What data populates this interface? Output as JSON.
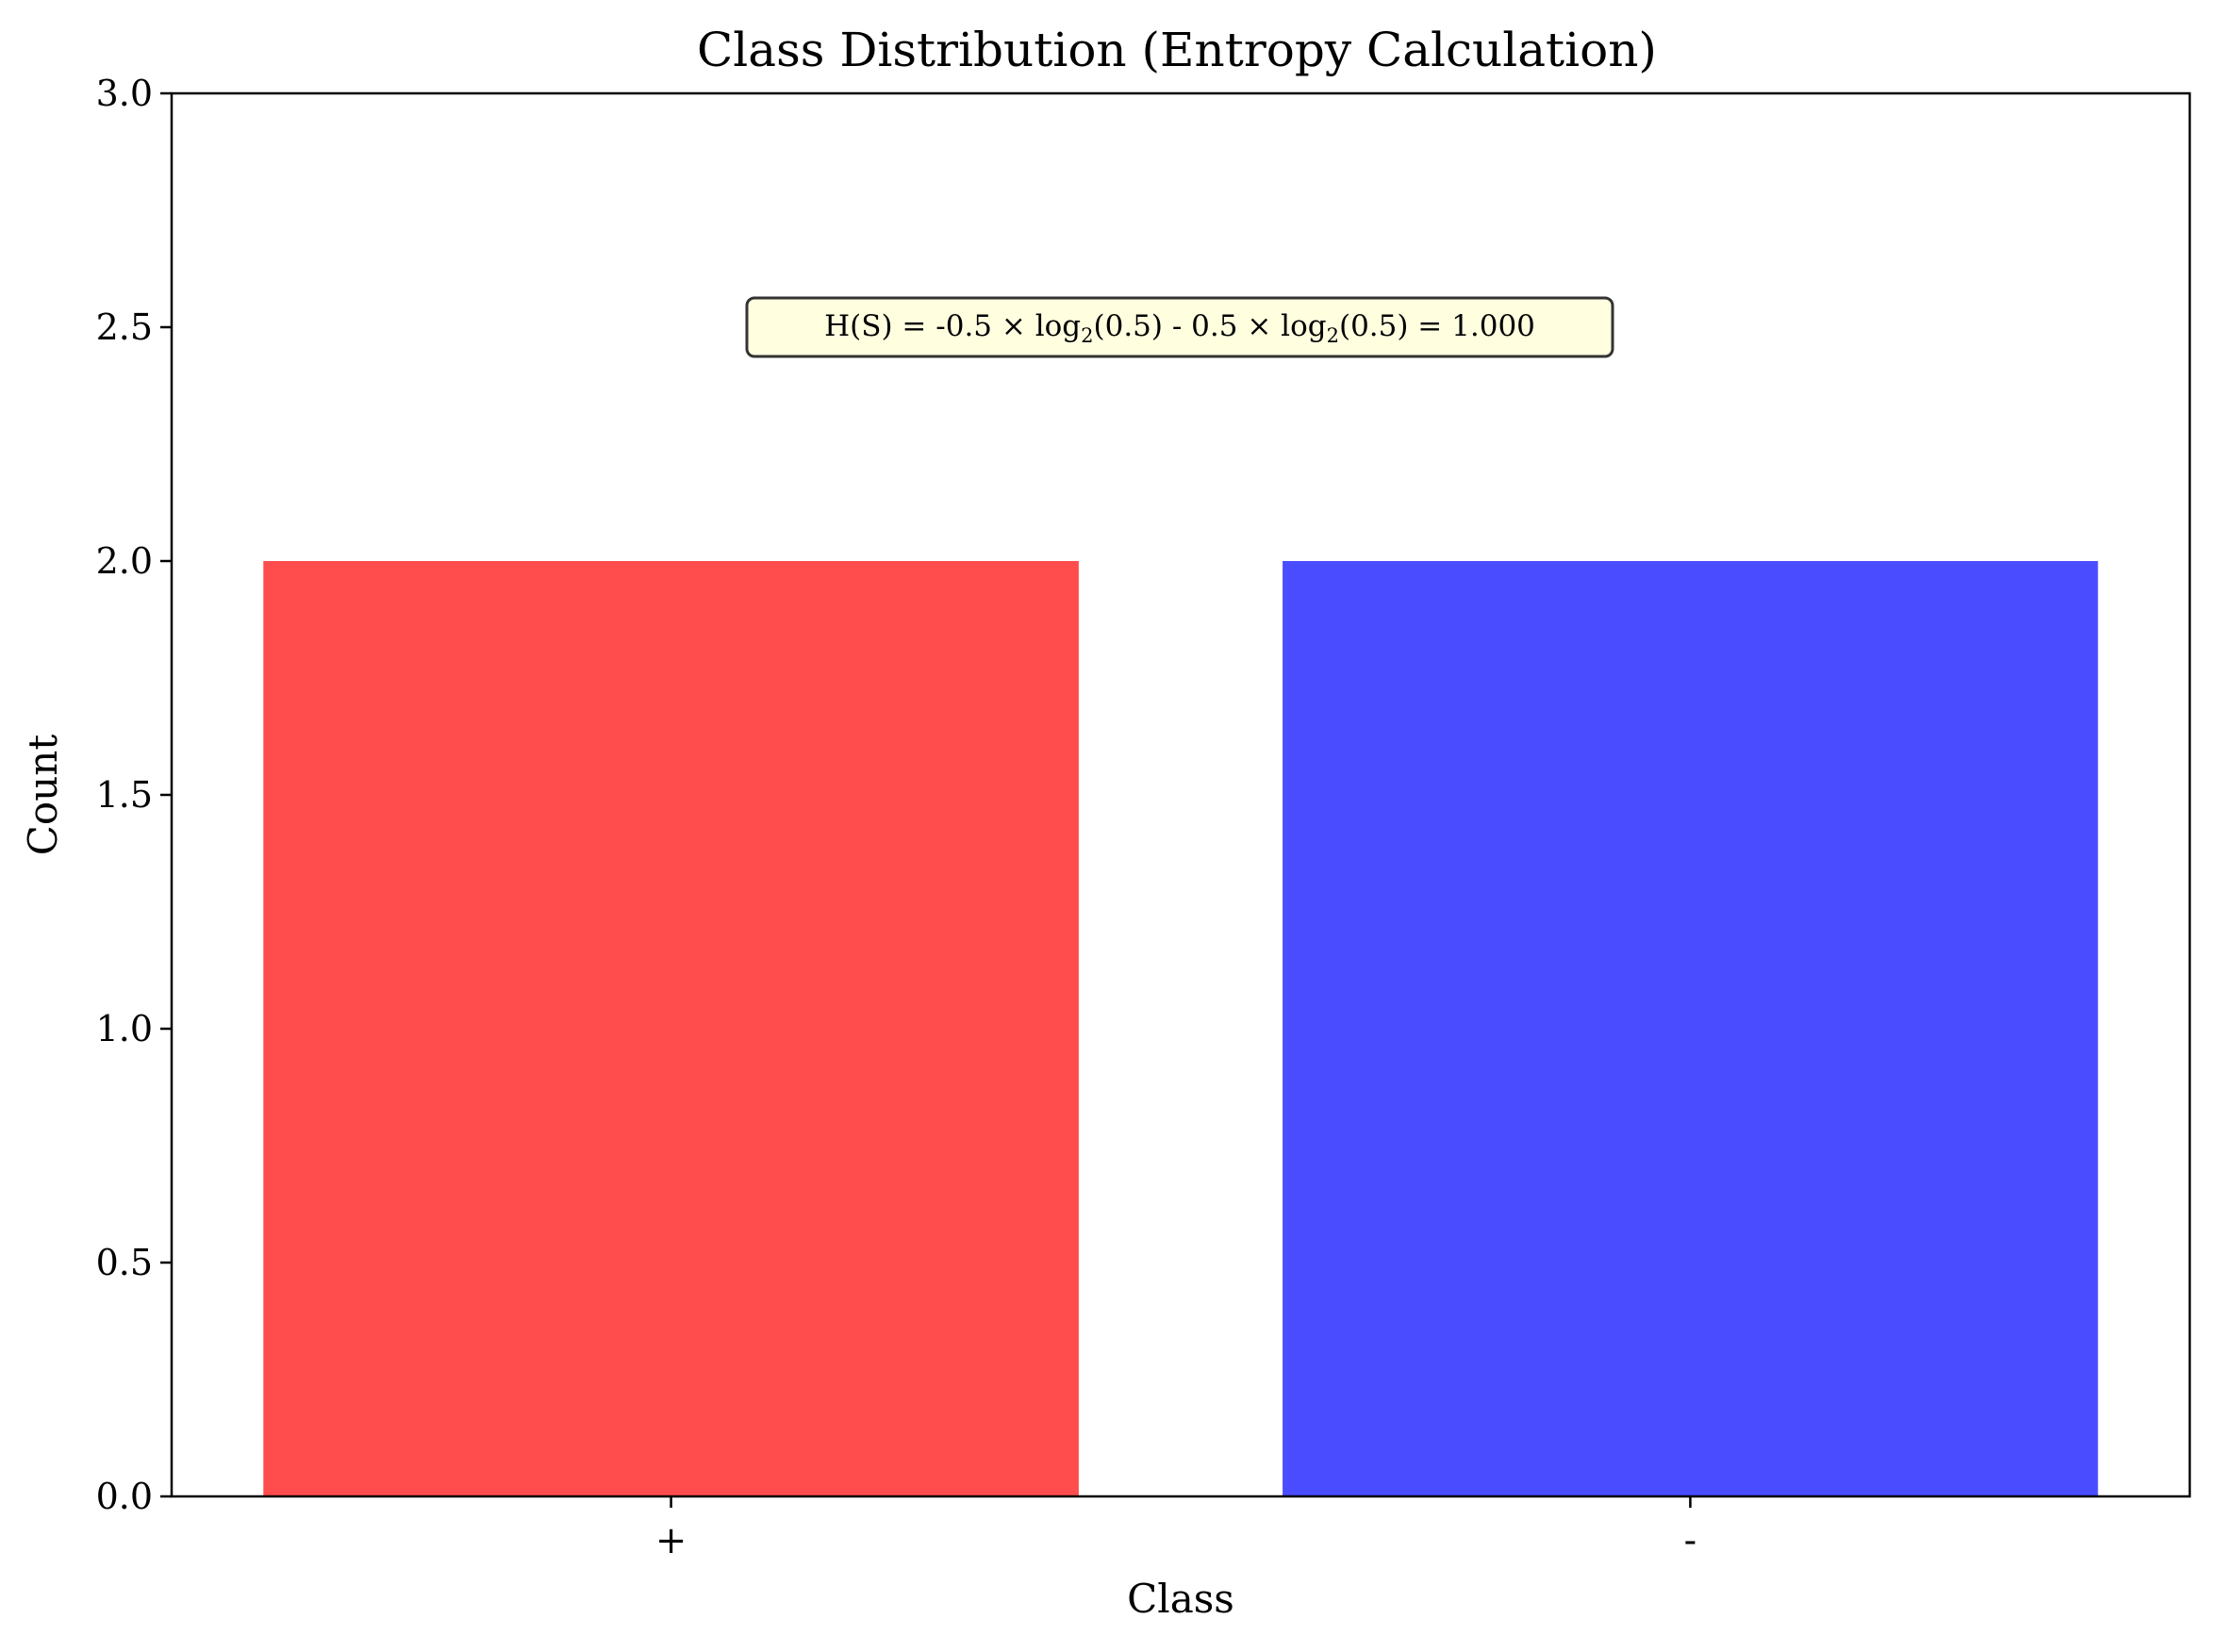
{
  "chart_data": {
    "type": "bar",
    "title": "Class Distribution (Entropy Calculation)",
    "xlabel": "Class",
    "ylabel": "Count",
    "categories": [
      "+",
      "-"
    ],
    "values": [
      2,
      2
    ],
    "colors": [
      "#ff4d4d",
      "#4a4dff"
    ],
    "ylim": [
      0,
      3
    ],
    "yticks": [
      0.0,
      0.5,
      1.0,
      1.5,
      2.0,
      2.5,
      3.0
    ],
    "ytick_labels": [
      "0.0",
      "0.5",
      "1.0",
      "1.5",
      "2.0",
      "2.5",
      "3.0"
    ],
    "grid": false,
    "legend": "none",
    "annotation": {
      "parts": [
        "H(S) = -0.5 × log",
        "2",
        "(0.5) - 0.5 × log",
        "2",
        "(0.5) = 1.000"
      ],
      "at_y": 2.5,
      "box_color": "#ffffe0"
    }
  }
}
